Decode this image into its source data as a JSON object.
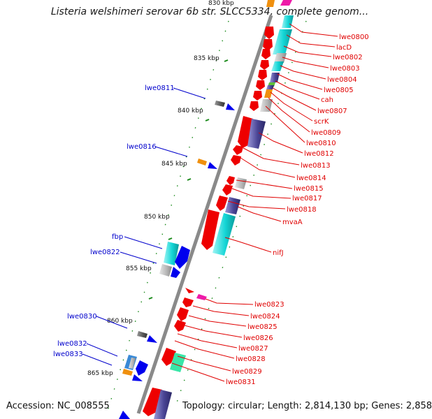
{
  "title": "Listeria welshimeri serovar 6b str. SLCC5334, complete genom...",
  "footer": {
    "accession": "Accession: NC_008555",
    "summary": "Topology: circular; Length: 2,814,130 bp; Genes: 2,858"
  },
  "ruler_ticks": [
    "830 kbp",
    "835 kbp",
    "840 kbp",
    "845 kbp",
    "850 kbp",
    "855 kbp",
    "860 kbp",
    "865 kbp"
  ],
  "right_labels": [
    "lwe0800",
    "lacD",
    "lwe0802",
    "lwe0803",
    "lwe0804",
    "lwe0805",
    "cah",
    "lwe0807",
    "scrK",
    "lwe0809",
    "lwe0810",
    "lwe0812",
    "lwe0813",
    "lwe0814",
    "lwe0815",
    "lwe0817",
    "lwe0818",
    "mvaA",
    "nifJ",
    "lwe0823",
    "lwe0824",
    "lwe0825",
    "lwe0826",
    "lwe0827",
    "lwe0828",
    "lwe0829",
    "lwe0831"
  ],
  "left_labels": [
    "lwe0811",
    "lwe0816",
    "fbp",
    "lwe0822",
    "lwe0830",
    "lwe0832",
    "lwe0833"
  ],
  "colors": {
    "forward_strand": "#ee0000",
    "reverse_strand": "#0000ee",
    "left_label": "#0000cc",
    "right_label": "#e00000",
    "backbone": "#8a8a8a",
    "tick_mark": "#1a8a1a"
  }
}
